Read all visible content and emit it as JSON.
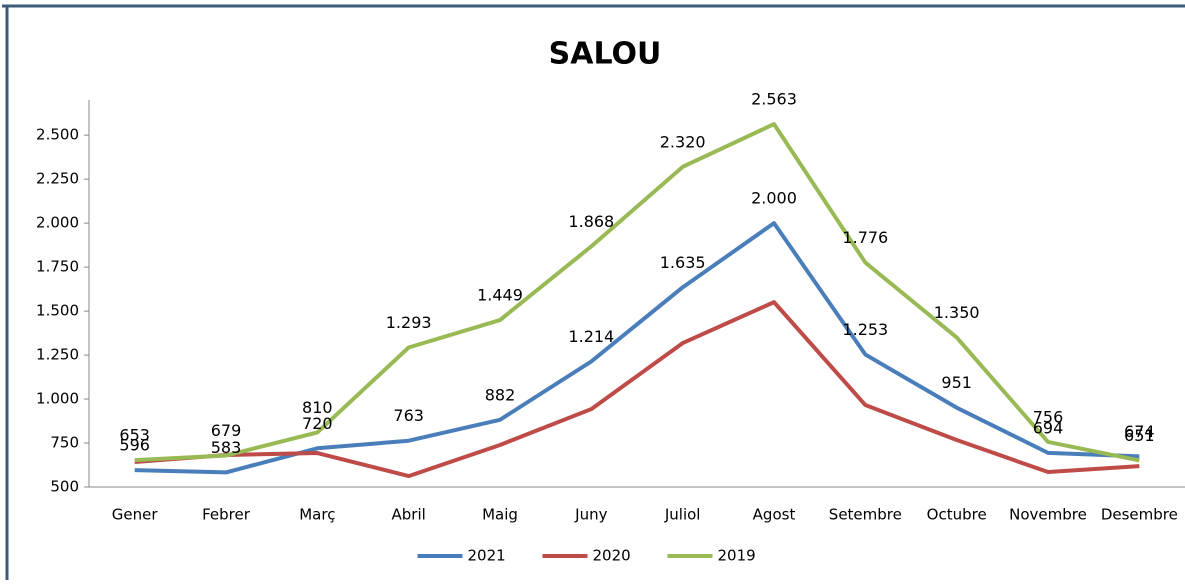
{
  "chart_data": {
    "type": "line",
    "title": "SALOU",
    "categories": [
      "Gener",
      "Febrer",
      "Març",
      "Abril",
      "Maig",
      "Juny",
      "Juliol",
      "Agost",
      "Setembre",
      "Octubre",
      "Novembre",
      "Desembre"
    ],
    "series": [
      {
        "name": "2021",
        "color": "#4a7ebb",
        "values": [
          596,
          583,
          720,
          763,
          882,
          1214,
          1635,
          2000,
          1253,
          951,
          694,
          674
        ],
        "value_labels": [
          "596",
          "583",
          "720",
          "763",
          "882",
          "1.214",
          "1.635",
          "2.000",
          "1.253",
          "951",
          "694",
          "674"
        ]
      },
      {
        "name": "2020",
        "color": "#be4b48",
        "values": [
          642,
          682,
          693,
          562,
          739,
          943,
          1318,
          1551,
          966,
          767,
          585,
          619
        ]
      },
      {
        "name": "2019",
        "color": "#98b954",
        "values": [
          653,
          679,
          810,
          1293,
          1449,
          1868,
          2320,
          2563,
          1776,
          1350,
          756,
          651
        ],
        "value_labels": [
          "653",
          "679",
          "810",
          "1.293",
          "1.449",
          "1.868",
          "2.320",
          "2.563",
          "1.776",
          "1.350",
          "756",
          "651"
        ]
      }
    ],
    "ylim": [
      500,
      2700
    ],
    "yticks": [
      500,
      750,
      {
        "value": 1000,
        "label": "1.000"
      },
      {
        "value": 1250,
        "label": "1.250"
      },
      {
        "value": 1500,
        "label": "1.500"
      },
      {
        "value": 1750,
        "label": "1.750"
      },
      {
        "value": 2000,
        "label": "2.000"
      },
      {
        "value": 2250,
        "label": "2.250"
      },
      {
        "value": 2500,
        "label": "2.500"
      }
    ],
    "grid": false,
    "legend": "bottom"
  }
}
